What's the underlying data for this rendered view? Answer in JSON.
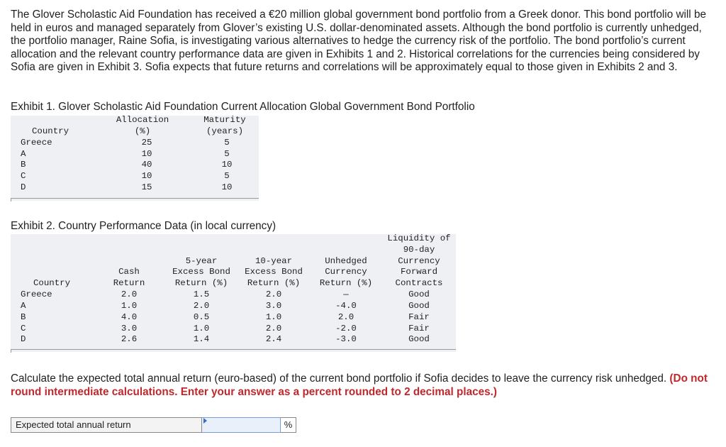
{
  "intro_text": "The Glover Scholastic Aid Foundation has received a €20 million global government bond portfolio from a Greek donor. This bond portfolio will be held in euros and managed separately from Glover’s existing U.S. dollar-denominated assets. Although the bond portfolio is currently unhedged, the portfolio manager, Raine Sofia, is investigating various alternatives to hedge the currency risk of the portfolio. The bond portfolio’s current allocation and the relevant country performance data are given in Exhibits 1 and 2. Historical correlations for the currencies being considered by Sofia are given in Exhibit 3. Sofia expects that future returns and correlations will be approximately equal to those given in Exhibits 2 and 3.",
  "exhibit1": {
    "title": "Exhibit 1. Glover Scholastic Aid Foundation Current Allocation Global Government Bond Portfolio",
    "headers": {
      "country": "Country",
      "allocation_1": "Allocation",
      "allocation_2": "(%)",
      "maturity_1": "Maturity",
      "maturity_2": "(years)"
    },
    "rows": [
      {
        "country": "Greece",
        "allocation": "25",
        "maturity": "5"
      },
      {
        "country": "A",
        "allocation": "10",
        "maturity": "5"
      },
      {
        "country": "B",
        "allocation": "40",
        "maturity": "10"
      },
      {
        "country": "C",
        "allocation": "10",
        "maturity": "5"
      },
      {
        "country": "D",
        "allocation": "15",
        "maturity": "10"
      }
    ]
  },
  "exhibit2": {
    "title": "Exhibit 2. Country Performance Data (in local currency)",
    "headers": {
      "country": "Country",
      "cash_1": "Cash",
      "cash_2": "Return",
      "five_1": "5-year",
      "five_2": "Excess Bond",
      "five_3": "Return (%)",
      "ten_1": "10-year",
      "ten_2": "Excess Bond",
      "ten_3": "Return (%)",
      "unh_1": "Unhedged",
      "unh_2": "Currency",
      "unh_3": "Return (%)",
      "liq_1": "Liquidity of",
      "liq_2": "90-day",
      "liq_3": "Currency",
      "liq_4": "Forward",
      "liq_5": "Contracts"
    },
    "rows": [
      {
        "country": "Greece",
        "cash": "2.0",
        "five": "1.5",
        "ten": "2.0",
        "unhedged": "—",
        "liquidity": "Good"
      },
      {
        "country": "A",
        "cash": "1.0",
        "five": "2.0",
        "ten": "3.0",
        "unhedged": "-4.0",
        "liquidity": "Good"
      },
      {
        "country": "B",
        "cash": "4.0",
        "five": "0.5",
        "ten": "1.0",
        "unhedged": "2.0",
        "liquidity": "Fair"
      },
      {
        "country": "C",
        "cash": "3.0",
        "five": "1.0",
        "ten": "2.0",
        "unhedged": "-2.0",
        "liquidity": "Fair"
      },
      {
        "country": "D",
        "cash": "2.6",
        "five": "1.4",
        "ten": "2.4",
        "unhedged": "-3.0",
        "liquidity": "Good"
      }
    ]
  },
  "question": {
    "text": "Calculate the expected total annual return (euro-based) of the current bond portfolio if Sofia decides to leave the currency risk unhedged. ",
    "instruction": "(Do not round intermediate calculations. Enter your answer as a percent rounded to 2 decimal places.)"
  },
  "answer": {
    "label": "Expected total annual return",
    "value": "",
    "unit": "%"
  },
  "colors": {
    "table_background": "#eef0f3",
    "instruction_red": "#c0282d",
    "input_background": "#e9f0fa",
    "input_border": "#7a9fd0"
  }
}
